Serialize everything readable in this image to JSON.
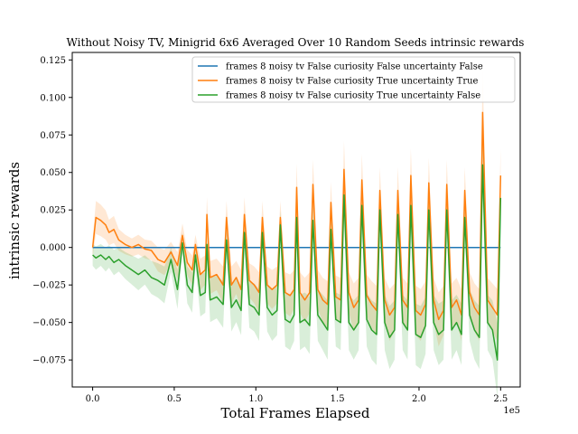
{
  "chart_data": {
    "type": "line",
    "title": "Without Noisy TV, Minigrid 6x6 Averaged Over 10 Random Seeds intrinsic rewards",
    "xlabel": "Total Frames Elapsed",
    "ylabel": "intrinsic rewards",
    "x_offset_text": "1e5",
    "xlim": [
      -12500,
      262000
    ],
    "ylim": [
      -0.093,
      0.13
    ],
    "x_ticks": [
      0,
      50000,
      100000,
      150000,
      200000,
      250000
    ],
    "x_tick_labels": [
      "0.0",
      "0.5",
      "1.0",
      "1.5",
      "2.0",
      "2.5"
    ],
    "y_ticks": [
      -0.075,
      -0.05,
      -0.025,
      0.0,
      0.025,
      0.05,
      0.075,
      0.1,
      0.125
    ],
    "y_tick_labels": [
      "−0.075",
      "−0.050",
      "−0.025",
      "0.000",
      "0.025",
      "0.050",
      "0.075",
      "0.100",
      "0.125"
    ],
    "grid": false,
    "legend_position": "upper right",
    "series": [
      {
        "name": "frames 8 noisy tv False curiosity False uncertainty False",
        "color": "#1f77b4",
        "x": [
          0,
          250000
        ],
        "y": [
          0.0,
          0.0
        ]
      },
      {
        "name": "frames 8 noisy tv False curiosity True uncertainty True",
        "color": "#ff7f0e",
        "x": [
          0,
          2000,
          5000,
          8000,
          10000,
          13000,
          16000,
          20000,
          24000,
          28000,
          32000,
          36000,
          40000,
          44000,
          48000,
          52000,
          55000,
          58000,
          61000,
          63000,
          66000,
          69000,
          70000,
          72000,
          76000,
          80000,
          82000,
          85000,
          88000,
          91000,
          93000,
          96000,
          99000,
          102000,
          104000,
          107000,
          110000,
          113000,
          115000,
          118000,
          121000,
          123500,
          125000,
          127000,
          130000,
          133000,
          135000,
          138000,
          141000,
          144000,
          146000,
          149000,
          152000,
          154000,
          157000,
          160000,
          163000,
          165000,
          168000,
          171000,
          174000,
          176000,
          179000,
          182000,
          185000,
          187000,
          190000,
          193000,
          195000,
          198000,
          201000,
          204000,
          206000,
          209000,
          212000,
          215000,
          217000,
          220000,
          223000,
          226000,
          228000,
          231000,
          234000,
          237000,
          239000,
          242000,
          245000,
          248000,
          250000
        ],
        "y": [
          0.0,
          0.02,
          0.018,
          0.015,
          0.01,
          0.012,
          0.005,
          0.002,
          0.0,
          0.002,
          -0.001,
          -0.002,
          -0.008,
          -0.01,
          -0.003,
          -0.012,
          0.008,
          -0.01,
          -0.015,
          0.002,
          -0.018,
          -0.015,
          0.022,
          -0.02,
          -0.018,
          -0.025,
          0.02,
          -0.025,
          -0.02,
          -0.028,
          0.022,
          -0.022,
          -0.025,
          -0.03,
          0.02,
          -0.025,
          -0.028,
          -0.025,
          0.02,
          -0.03,
          -0.032,
          -0.028,
          0.04,
          -0.03,
          -0.035,
          -0.03,
          0.042,
          -0.028,
          -0.035,
          -0.038,
          0.03,
          -0.033,
          -0.035,
          0.052,
          -0.03,
          -0.04,
          -0.035,
          0.045,
          -0.032,
          -0.038,
          -0.042,
          0.038,
          -0.035,
          -0.045,
          -0.04,
          0.038,
          -0.035,
          -0.04,
          0.048,
          -0.042,
          -0.045,
          -0.038,
          0.043,
          -0.035,
          -0.048,
          -0.042,
          0.042,
          -0.04,
          -0.035,
          -0.045,
          0.038,
          -0.03,
          -0.04,
          -0.045,
          0.09,
          -0.035,
          -0.04,
          -0.045,
          0.048
        ]
      },
      {
        "name": "frames 8 noisy tv False curiosity True uncertainty False",
        "color": "#2ca02c",
        "x": [
          0,
          2000,
          5000,
          8000,
          10000,
          13000,
          16000,
          20000,
          24000,
          28000,
          32000,
          36000,
          40000,
          44000,
          48000,
          52000,
          55000,
          58000,
          61000,
          63000,
          66000,
          69000,
          70000,
          72000,
          76000,
          80000,
          82000,
          85000,
          88000,
          91000,
          93000,
          96000,
          99000,
          102000,
          104000,
          107000,
          110000,
          113000,
          115000,
          118000,
          121000,
          123500,
          125000,
          127000,
          130000,
          133000,
          135000,
          138000,
          141000,
          144000,
          146000,
          149000,
          152000,
          154000,
          157000,
          160000,
          163000,
          165000,
          168000,
          171000,
          174000,
          176000,
          179000,
          182000,
          185000,
          187000,
          190000,
          193000,
          195000,
          198000,
          201000,
          204000,
          206000,
          209000,
          212000,
          215000,
          217000,
          220000,
          223000,
          226000,
          228000,
          231000,
          234000,
          237000,
          239000,
          242000,
          245000,
          248000,
          250000
        ],
        "y": [
          -0.005,
          -0.007,
          -0.005,
          -0.008,
          -0.006,
          -0.01,
          -0.008,
          -0.012,
          -0.015,
          -0.018,
          -0.015,
          -0.02,
          -0.022,
          -0.025,
          -0.008,
          -0.028,
          0.003,
          -0.025,
          -0.03,
          -0.005,
          -0.032,
          -0.03,
          0.002,
          -0.035,
          -0.033,
          -0.038,
          0.005,
          -0.04,
          -0.035,
          -0.042,
          0.01,
          -0.038,
          -0.04,
          -0.045,
          0.01,
          -0.04,
          -0.045,
          -0.042,
          0.015,
          -0.048,
          -0.05,
          -0.045,
          0.02,
          -0.05,
          -0.048,
          -0.052,
          0.018,
          -0.045,
          -0.05,
          -0.055,
          0.012,
          -0.048,
          -0.05,
          0.035,
          -0.05,
          -0.055,
          -0.05,
          0.028,
          -0.048,
          -0.055,
          -0.058,
          0.025,
          -0.05,
          -0.06,
          -0.055,
          0.022,
          -0.05,
          -0.055,
          0.028,
          -0.058,
          -0.06,
          -0.052,
          0.025,
          -0.05,
          -0.058,
          -0.055,
          0.025,
          -0.055,
          -0.05,
          -0.058,
          0.02,
          -0.045,
          -0.055,
          -0.06,
          0.055,
          -0.05,
          -0.055,
          -0.075,
          0.033
        ]
      }
    ]
  }
}
